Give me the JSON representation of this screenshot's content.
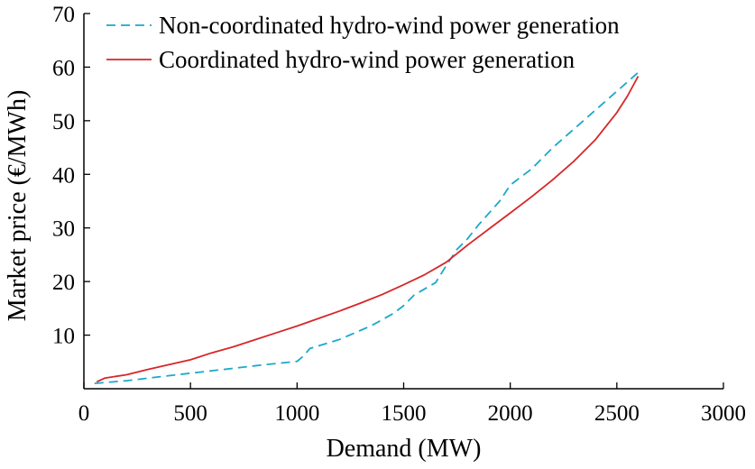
{
  "chart_data": {
    "type": "line",
    "title": "",
    "xlabel": "Demand (MW)",
    "ylabel": "Market price (€/MWh)",
    "xlim": [
      0,
      3000
    ],
    "ylim": [
      0,
      70
    ],
    "x_ticks": [
      "0",
      "500",
      "1000",
      "1500",
      "2000",
      "2500",
      "3000"
    ],
    "y_ticks": [
      "10",
      "20",
      "30",
      "40",
      "50",
      "60",
      "70"
    ],
    "grid": false,
    "legend_position": "top-left",
    "series": [
      {
        "name": "Non-coordinated hydro-wind power generation",
        "style": "dashed",
        "color": "#1ba8cc",
        "points": [
          [
            50,
            1.0
          ],
          [
            200,
            1.5
          ],
          [
            350,
            2.2
          ],
          [
            500,
            2.9
          ],
          [
            700,
            3.8
          ],
          [
            850,
            4.5
          ],
          [
            1000,
            5.1
          ],
          [
            1030,
            6.1
          ],
          [
            1060,
            7.5
          ],
          [
            1200,
            9.2
          ],
          [
            1350,
            11.8
          ],
          [
            1450,
            14.0
          ],
          [
            1500,
            15.5
          ],
          [
            1550,
            17.5
          ],
          [
            1650,
            19.8
          ],
          [
            1700,
            23.0
          ],
          [
            1750,
            26.0
          ],
          [
            1800,
            28.0
          ],
          [
            1850,
            30.5
          ],
          [
            1950,
            35.0
          ],
          [
            2000,
            38.0
          ],
          [
            2100,
            41.0
          ],
          [
            2200,
            45.0
          ],
          [
            2300,
            48.5
          ],
          [
            2400,
            52.0
          ],
          [
            2500,
            55.5
          ],
          [
            2600,
            59.0
          ]
        ]
      },
      {
        "name": "Coordinated hydro-wind power generation",
        "style": "solid",
        "color": "#d62728",
        "points": [
          [
            60,
            1.3
          ],
          [
            100,
            2.0
          ],
          [
            150,
            2.3
          ],
          [
            200,
            2.6
          ],
          [
            300,
            3.6
          ],
          [
            400,
            4.5
          ],
          [
            500,
            5.4
          ],
          [
            600,
            6.7
          ],
          [
            700,
            7.8
          ],
          [
            800,
            9.1
          ],
          [
            900,
            10.4
          ],
          [
            1000,
            11.7
          ],
          [
            1100,
            13.1
          ],
          [
            1200,
            14.5
          ],
          [
            1300,
            16.0
          ],
          [
            1400,
            17.6
          ],
          [
            1500,
            19.4
          ],
          [
            1600,
            21.3
          ],
          [
            1700,
            23.6
          ],
          [
            1800,
            26.8
          ],
          [
            1900,
            29.8
          ],
          [
            2000,
            32.8
          ],
          [
            2100,
            35.8
          ],
          [
            2200,
            39.0
          ],
          [
            2300,
            42.5
          ],
          [
            2400,
            46.5
          ],
          [
            2500,
            51.5
          ],
          [
            2550,
            54.6
          ],
          [
            2600,
            58.3
          ]
        ]
      }
    ]
  }
}
